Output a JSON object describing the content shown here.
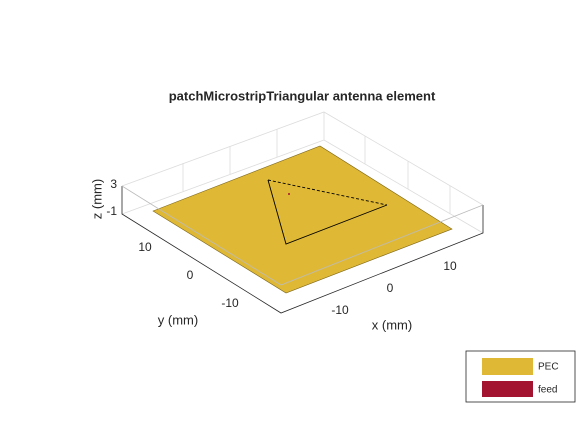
{
  "title": "patchMicrostripTriangular antenna element",
  "axes": {
    "x_label": "x (mm)",
    "y_label": "y (mm)",
    "z_label": "z (mm)",
    "x_ticks": [
      "-10",
      "0",
      "10"
    ],
    "y_ticks": [
      "10",
      "0",
      "-10"
    ],
    "z_ticks": [
      "3",
      "-1"
    ]
  },
  "legend": {
    "entries": [
      "PEC",
      "feed"
    ]
  }
}
